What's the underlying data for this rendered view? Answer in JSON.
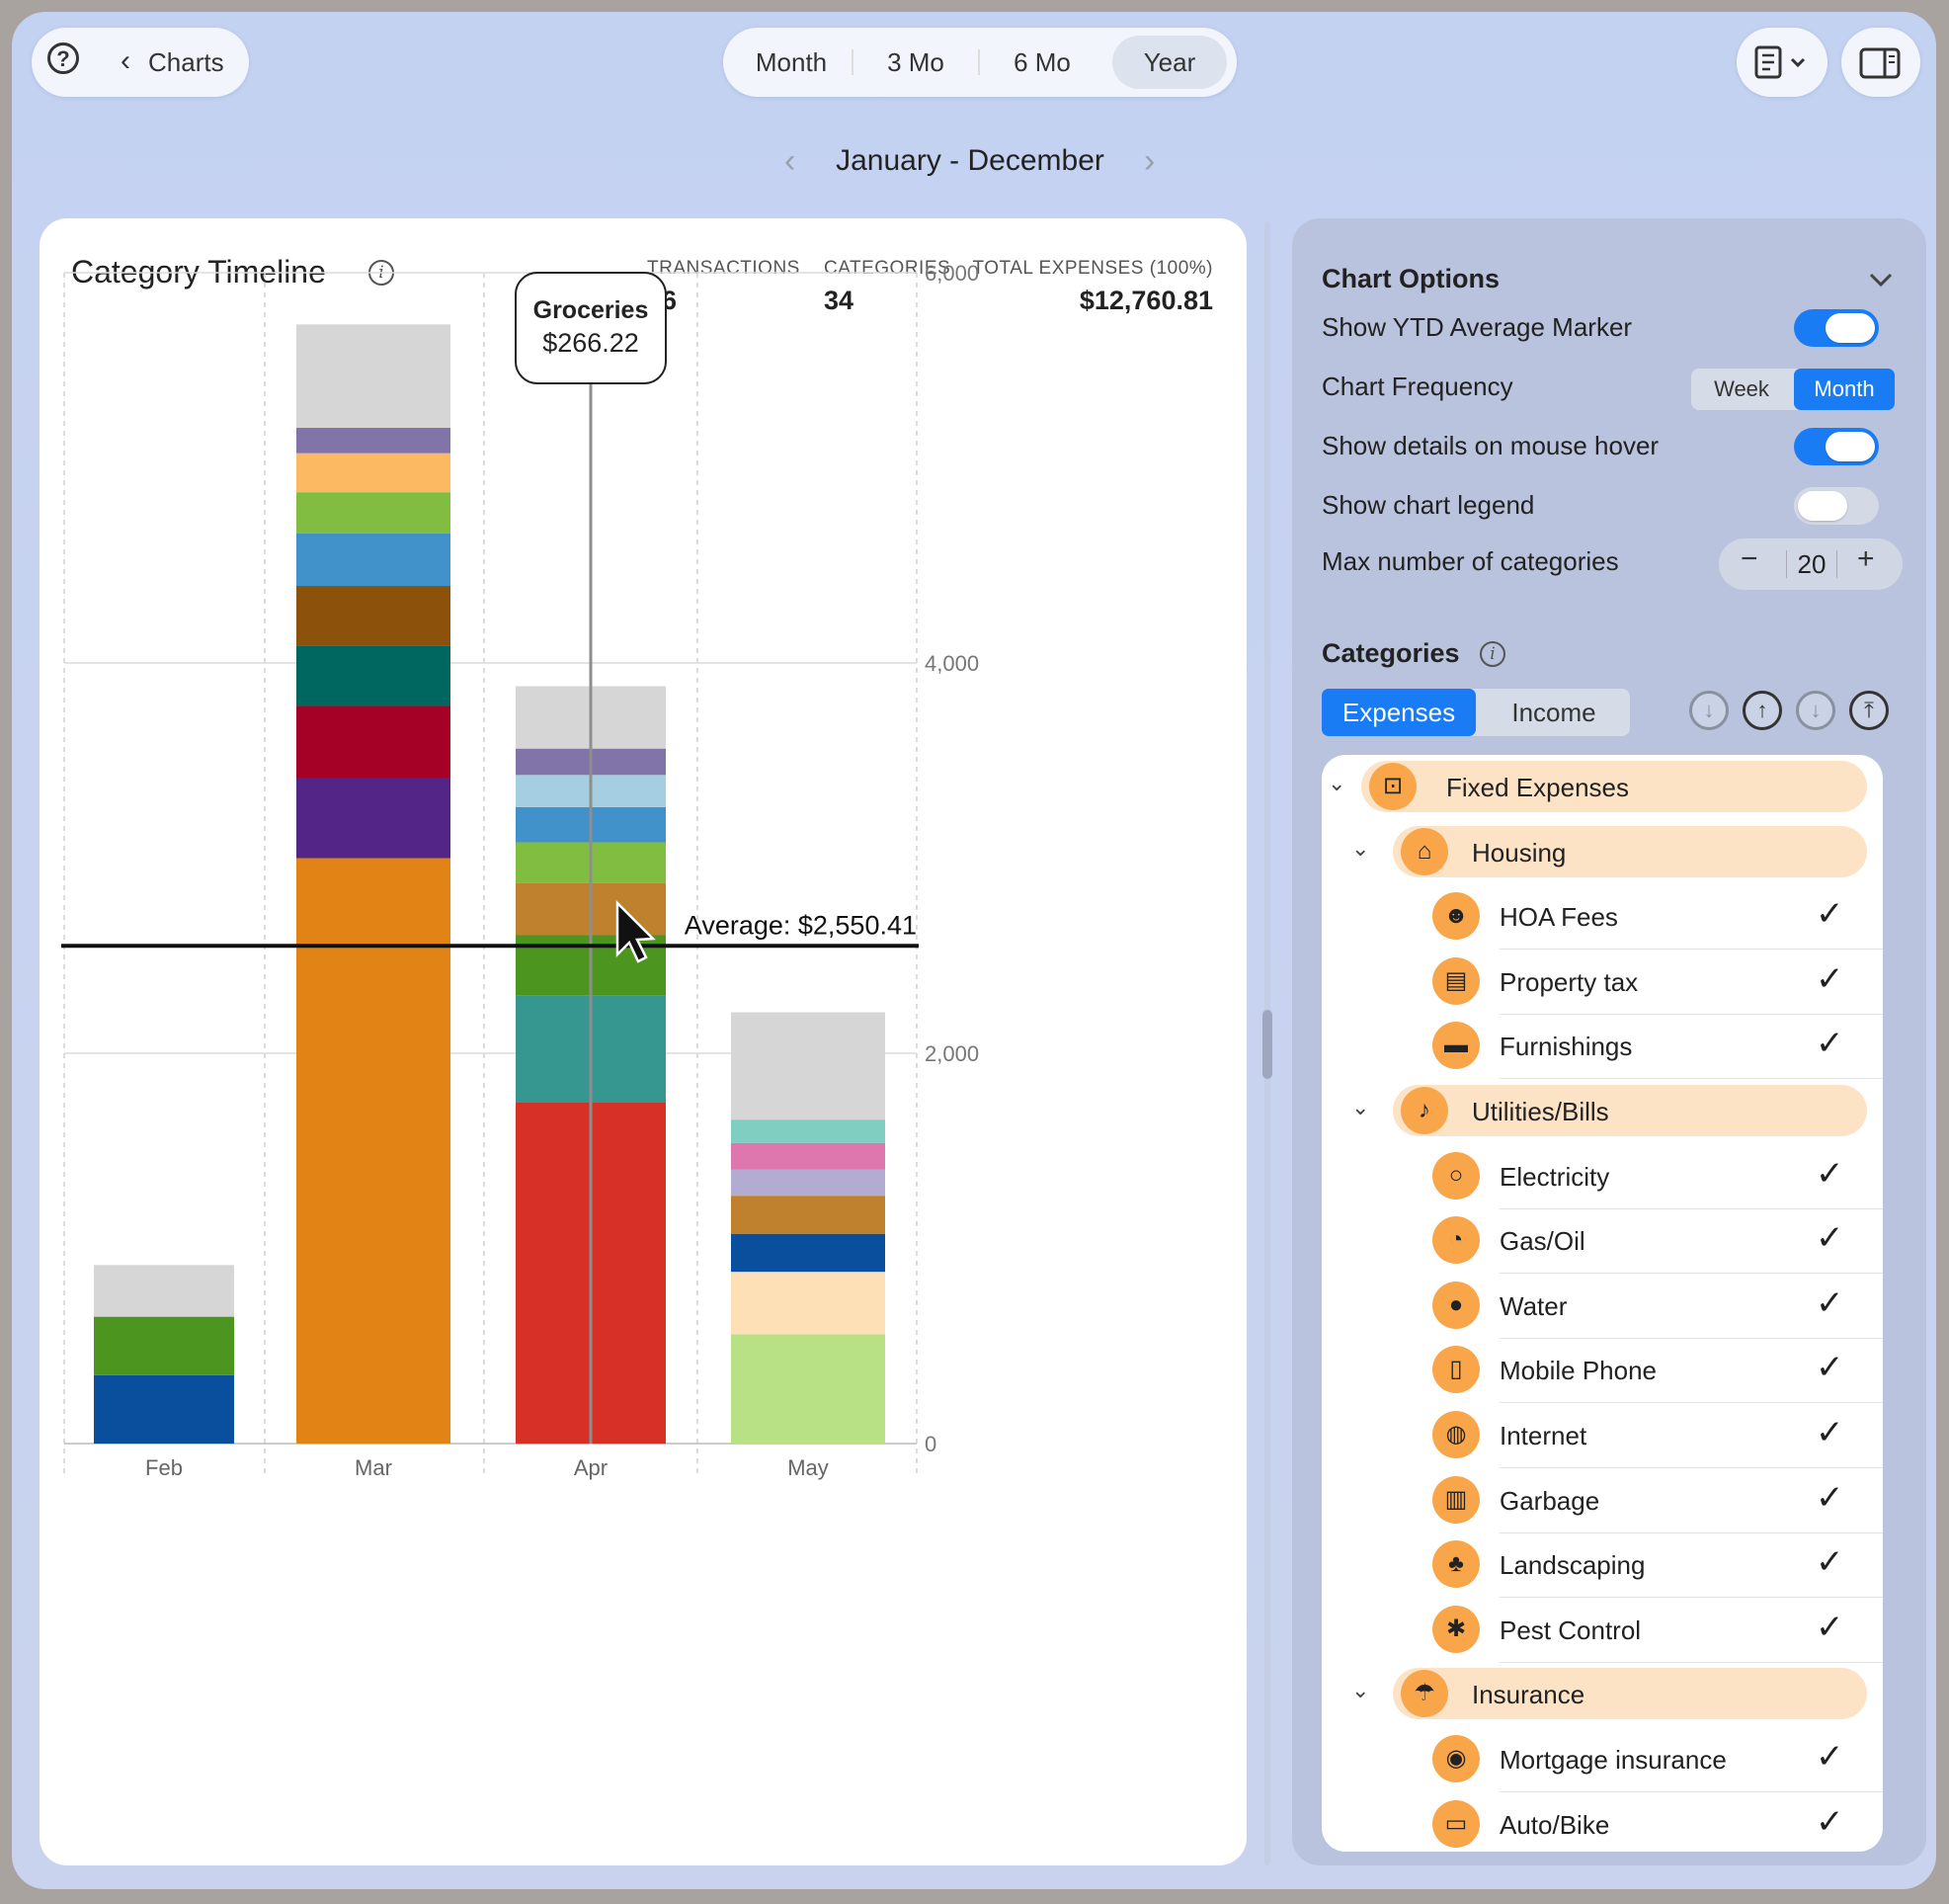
{
  "toolbar": {
    "back_label": "Charts",
    "segments": [
      "Month",
      "3 Mo",
      "6 Mo",
      "Year"
    ],
    "active_segment": "Year",
    "date_range": "January - December"
  },
  "card": {
    "title": "Category Timeline",
    "stats": [
      {
        "label": "TRANSACTIONS",
        "value": "96"
      },
      {
        "label": "CATEGORIES",
        "value": "34"
      },
      {
        "label": "TOTAL EXPENSES (100%)",
        "value": "$12,760.81"
      }
    ]
  },
  "chart_data": {
    "type": "bar",
    "stacked": true,
    "categories": [
      "Feb",
      "Mar",
      "Apr",
      "May"
    ],
    "ylim": [
      0,
      6000
    ],
    "yticks": [
      "0",
      "2,000",
      "4,000",
      "6,000"
    ],
    "grid": true,
    "stacks": [
      {
        "x": "Feb",
        "segments": [
          {
            "value": 350,
            "color": "#0a4f9e"
          },
          {
            "value": 300,
            "color": "#4c961f"
          },
          {
            "value": 265,
            "color": "#d6d6d6"
          }
        ]
      },
      {
        "x": "Mar",
        "segments": [
          {
            "value": 3000,
            "color": "#e28415"
          },
          {
            "value": 410,
            "color": "#532587"
          },
          {
            "value": 370,
            "color": "#a50026"
          },
          {
            "value": 310,
            "color": "#006760"
          },
          {
            "value": 305,
            "color": "#8c510a"
          },
          {
            "value": 270,
            "color": "#4191cb"
          },
          {
            "value": 210,
            "color": "#80bd41"
          },
          {
            "value": 200,
            "color": "#fdb862"
          },
          {
            "value": 130,
            "color": "#8074a8"
          },
          {
            "value": 530,
            "color": "#d6d6d6"
          }
        ]
      },
      {
        "x": "Apr",
        "segments": [
          {
            "value": 1750,
            "color": "#d73027"
          },
          {
            "value": 545,
            "color": "#35978f"
          },
          {
            "value": 310,
            "color": "#4c961f"
          },
          {
            "value": 266.22,
            "color": "#bf812d"
          },
          {
            "value": 210,
            "color": "#80bd41"
          },
          {
            "value": 180,
            "color": "#4191cb"
          },
          {
            "value": 165,
            "color": "#a6cee3"
          },
          {
            "value": 135,
            "color": "#8074a8"
          },
          {
            "value": 320,
            "color": "#d6d6d6"
          }
        ]
      },
      {
        "x": "May",
        "segments": [
          {
            "value": 560,
            "color": "#b8e186"
          },
          {
            "value": 320,
            "color": "#fee0b6"
          },
          {
            "value": 195,
            "color": "#0a4f9e"
          },
          {
            "value": 195,
            "color": "#bf812d"
          },
          {
            "value": 135,
            "color": "#b2abd2"
          },
          {
            "value": 135,
            "color": "#de77ae"
          },
          {
            "value": 120,
            "color": "#80cdc1"
          },
          {
            "value": 550,
            "color": "#d6d6d6"
          }
        ]
      }
    ],
    "average": {
      "value": 2550.41,
      "label": "Average: $2,550.41"
    },
    "tooltip": {
      "x": "Apr",
      "title": "Groceries",
      "value": "$266.22"
    }
  },
  "options": {
    "title": "Chart Options",
    "show_ytd_label": "Show YTD Average Marker",
    "show_ytd": true,
    "frequency_label": "Chart Frequency",
    "frequency_options": [
      "Week",
      "Month"
    ],
    "frequency_active": "Month",
    "hover_label": "Show details on mouse hover",
    "hover": true,
    "legend_label": "Show chart legend",
    "legend": false,
    "max_label": "Max number of categories",
    "max_value": "20"
  },
  "categories": {
    "title": "Categories",
    "tabs": [
      "Expenses",
      "Income"
    ],
    "active_tab": "Expenses",
    "rows": [
      {
        "level": 0,
        "group": true,
        "label": "Fixed Expenses",
        "icon": "pin-icon"
      },
      {
        "level": 1,
        "group": true,
        "label": "Housing",
        "icon": "house-icon"
      },
      {
        "level": 2,
        "label": "HOA Fees",
        "icon": "people-icon"
      },
      {
        "level": 2,
        "label": "Property tax",
        "icon": "clipboard-icon"
      },
      {
        "level": 2,
        "label": "Furnishings",
        "icon": "sofa-icon"
      },
      {
        "level": 1,
        "group": true,
        "label": "Utilities/Bills",
        "icon": "bell-icon"
      },
      {
        "level": 2,
        "label": "Electricity",
        "icon": "lightbulb-icon"
      },
      {
        "level": 2,
        "label": "Gas/Oil",
        "icon": "gauge-icon"
      },
      {
        "level": 2,
        "label": "Water",
        "icon": "drop-icon"
      },
      {
        "level": 2,
        "label": "Mobile Phone",
        "icon": "phone-icon"
      },
      {
        "level": 2,
        "label": "Internet",
        "icon": "globe-icon"
      },
      {
        "level": 2,
        "label": "Garbage",
        "icon": "trash-icon"
      },
      {
        "level": 2,
        "label": "Landscaping",
        "icon": "tree-icon"
      },
      {
        "level": 2,
        "label": "Pest Control",
        "icon": "bug-icon"
      },
      {
        "level": 1,
        "group": true,
        "label": "Insurance",
        "icon": "umbrella-icon"
      },
      {
        "level": 2,
        "label": "Mortgage insurance",
        "icon": "mortgage-icon"
      },
      {
        "level": 2,
        "label": "Auto/Bike",
        "icon": "car-icon"
      }
    ]
  }
}
